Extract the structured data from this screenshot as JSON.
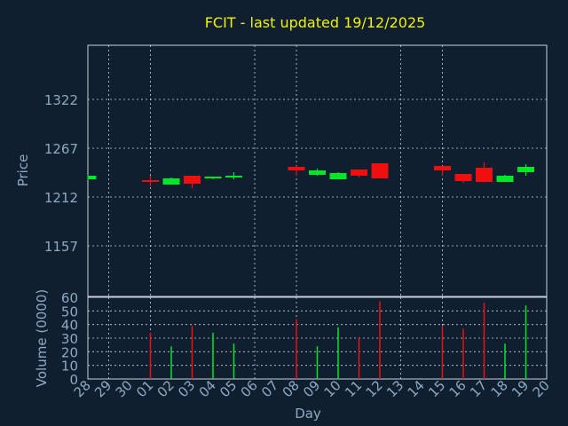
{
  "title": "FCIT - last updated 19/12/2025",
  "colors": {
    "background": "#0f1f30",
    "text": "#8fa9c2",
    "title": "#f2f200",
    "frame": "#c8d2dc",
    "grid": "#c8d2dc",
    "up": "#00e628",
    "down": "#f00f0f"
  },
  "chart_data": [
    {
      "type": "candlestick",
      "ylabel": "Price",
      "yticks": [
        1157,
        1212,
        1267,
        1322
      ],
      "ylim": [
        1100,
        1383
      ],
      "grid": true,
      "categories": [
        "28",
        "29",
        "30",
        "01",
        "02",
        "03",
        "04",
        "05",
        "06",
        "07",
        "08",
        "09",
        "10",
        "11",
        "12",
        "13",
        "14",
        "15",
        "16",
        "17",
        "18",
        "19",
        "20"
      ],
      "candles": [
        {
          "day": "28",
          "open": 1232,
          "close": 1236,
          "high": 1237,
          "low": 1231
        },
        {
          "day": "01",
          "open": 1231,
          "close": 1230,
          "high": 1236,
          "low": 1224
        },
        {
          "day": "02",
          "open": 1226,
          "close": 1233,
          "high": 1234,
          "low": 1226
        },
        {
          "day": "03",
          "open": 1236,
          "close": 1227,
          "high": 1236,
          "low": 1222
        },
        {
          "day": "04",
          "open": 1233,
          "close": 1235,
          "high": 1235,
          "low": 1232
        },
        {
          "day": "05",
          "open": 1234,
          "close": 1236,
          "high": 1240,
          "low": 1232
        },
        {
          "day": "08",
          "open": 1246,
          "close": 1242,
          "high": 1247,
          "low": 1236
        },
        {
          "day": "09",
          "open": 1237,
          "close": 1242,
          "high": 1244,
          "low": 1236
        },
        {
          "day": "10",
          "open": 1232,
          "close": 1239,
          "high": 1240,
          "low": 1232
        },
        {
          "day": "11",
          "open": 1243,
          "close": 1236,
          "high": 1243,
          "low": 1234
        },
        {
          "day": "12",
          "open": 1250,
          "close": 1233,
          "high": 1250,
          "low": 1233
        },
        {
          "day": "15",
          "open": 1247,
          "close": 1242,
          "high": 1247,
          "low": 1236
        },
        {
          "day": "16",
          "open": 1238,
          "close": 1230,
          "high": 1238,
          "low": 1228
        },
        {
          "day": "17",
          "open": 1245,
          "close": 1229,
          "high": 1251,
          "low": 1229
        },
        {
          "day": "18",
          "open": 1229,
          "close": 1236,
          "high": 1237,
          "low": 1229
        },
        {
          "day": "19",
          "open": 1240,
          "close": 1246,
          "high": 1249,
          "low": 1236
        }
      ]
    },
    {
      "type": "bar",
      "ylabel": "Volume (0000)",
      "xlabel": "Day",
      "yticks": [
        0,
        10,
        20,
        30,
        40,
        50,
        60
      ],
      "ylim": [
        0,
        60
      ],
      "grid": true,
      "categories": [
        "28",
        "29",
        "30",
        "01",
        "02",
        "03",
        "04",
        "05",
        "06",
        "07",
        "08",
        "09",
        "10",
        "11",
        "12",
        "13",
        "14",
        "15",
        "16",
        "17",
        "18",
        "19",
        "20"
      ],
      "bars": [
        {
          "day": "01",
          "value": 34,
          "direction": "down"
        },
        {
          "day": "02",
          "value": 24,
          "direction": "up"
        },
        {
          "day": "03",
          "value": 39,
          "direction": "down"
        },
        {
          "day": "04",
          "value": 34,
          "direction": "up"
        },
        {
          "day": "05",
          "value": 26,
          "direction": "up"
        },
        {
          "day": "08",
          "value": 44,
          "direction": "down"
        },
        {
          "day": "09",
          "value": 24,
          "direction": "up"
        },
        {
          "day": "10",
          "value": 38,
          "direction": "up"
        },
        {
          "day": "11",
          "value": 30,
          "direction": "down"
        },
        {
          "day": "12",
          "value": 57,
          "direction": "down"
        },
        {
          "day": "15",
          "value": 39,
          "direction": "down"
        },
        {
          "day": "16",
          "value": 37,
          "direction": "down"
        },
        {
          "day": "17",
          "value": 56,
          "direction": "down"
        },
        {
          "day": "18",
          "value": 26,
          "direction": "up"
        },
        {
          "day": "19",
          "value": 54,
          "direction": "up"
        }
      ]
    }
  ]
}
